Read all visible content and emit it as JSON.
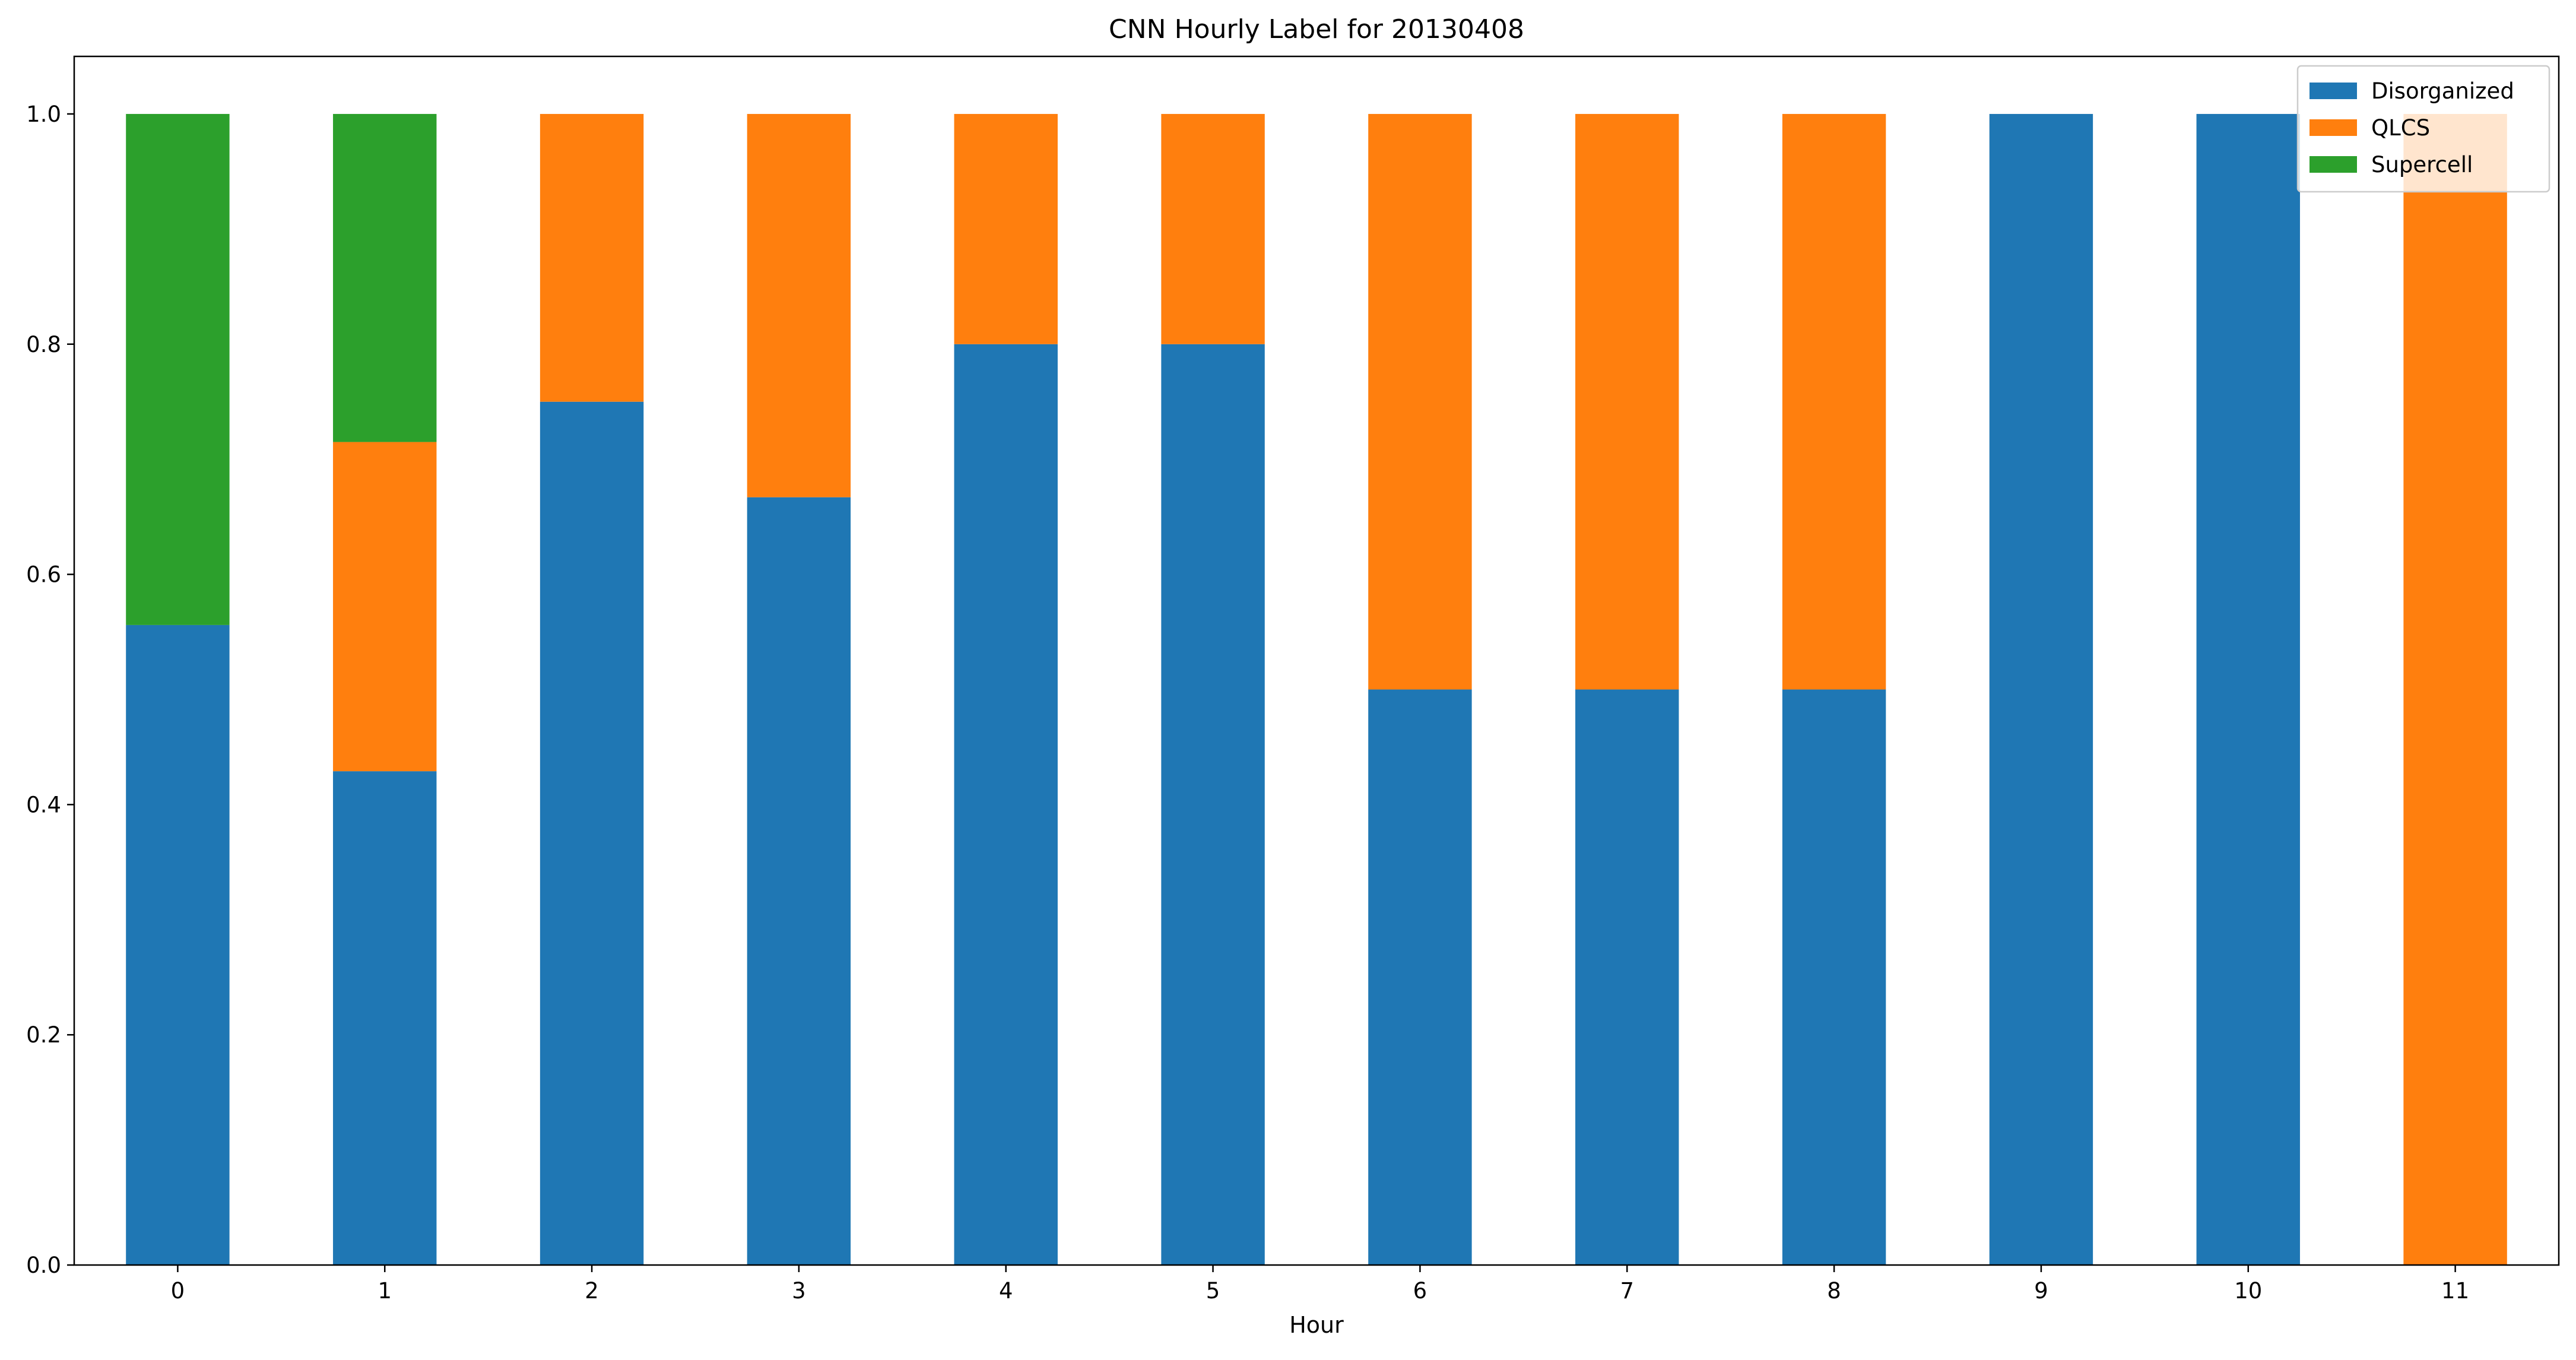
{
  "chart_data": {
    "type": "bar",
    "stacked": true,
    "title": "CNN Hourly Label for 20130408",
    "xlabel": "Hour",
    "ylabel": "",
    "categories": [
      "0",
      "1",
      "2",
      "3",
      "4",
      "5",
      "6",
      "7",
      "8",
      "9",
      "10",
      "11"
    ],
    "ylim": [
      0,
      1.05
    ],
    "yticks": [
      "0.0",
      "0.2",
      "0.4",
      "0.6",
      "0.8",
      "1.0"
    ],
    "ytick_values": [
      0,
      0.2,
      0.4,
      0.6,
      0.8,
      1.0
    ],
    "grid": false,
    "legend_position": "top-right",
    "series": [
      {
        "name": "Disorganized",
        "color": "#1f77b4",
        "values": [
          0.556,
          0.429,
          0.75,
          0.667,
          0.8,
          0.8,
          0.5,
          0.5,
          0.5,
          1.0,
          1.0,
          0.0
        ]
      },
      {
        "name": "QLCS",
        "color": "#ff7f0e",
        "values": [
          0.0,
          0.286,
          0.25,
          0.333,
          0.2,
          0.2,
          0.5,
          0.5,
          0.5,
          0.0,
          0.0,
          1.0
        ]
      },
      {
        "name": "Supercell",
        "color": "#2ca02c",
        "values": [
          0.444,
          0.285,
          0.0,
          0.0,
          0.0,
          0.0,
          0.0,
          0.0,
          0.0,
          0.0,
          0.0,
          0.0
        ]
      }
    ]
  }
}
